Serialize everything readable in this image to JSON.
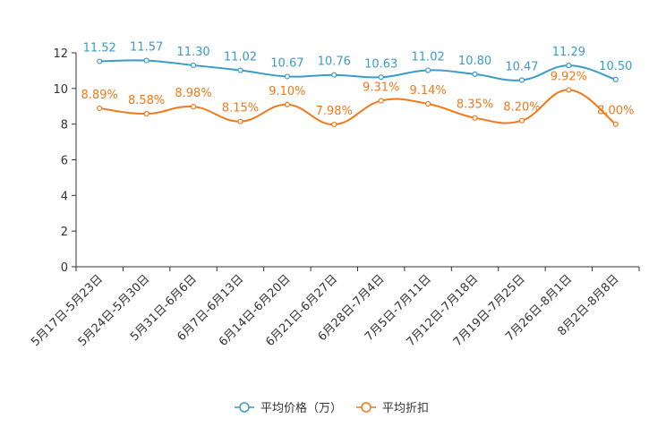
{
  "chart_data": {
    "type": "line",
    "categories": [
      "5月17日-5月23日",
      "5月24日-5月30日",
      "5月31日-6月6日",
      "6月7日-6月13日",
      "6月14日-6月20日",
      "6月21日-6月27日",
      "6月28日-7月4日",
      "7月5日-7月11日",
      "7月12日-7月18日",
      "7月19日-7月25日",
      "7月26日-8月1日",
      "8月2日-8月8日"
    ],
    "ylim": [
      0,
      12
    ],
    "yticks": [
      0,
      2,
      4,
      6,
      8,
      10,
      12
    ],
    "series": [
      {
        "name": "平均价格（万）",
        "color": "#3a9cc9",
        "values": [
          11.52,
          11.57,
          11.3,
          11.02,
          10.67,
          10.76,
          10.63,
          11.02,
          10.8,
          10.47,
          11.29,
          10.5
        ],
        "labels": [
          "11.52",
          "11.57",
          "11.30",
          "11.02",
          "10.67",
          "10.76",
          "10.63",
          "11.02",
          "10.80",
          "10.47",
          "11.29",
          "10.50"
        ]
      },
      {
        "name": "平均折扣",
        "color": "#f07a1a",
        "values": [
          8.89,
          8.58,
          8.98,
          8.15,
          9.1,
          7.98,
          9.31,
          9.14,
          8.35,
          8.2,
          9.92,
          8.0
        ],
        "labels": [
          "8.89%",
          "8.58%",
          "8.98%",
          "8.15%",
          "9.10%",
          "7.98%",
          "9.31%",
          "9.14%",
          "8.35%",
          "8.20%",
          "9.92%",
          "8.00%"
        ]
      }
    ],
    "legend_position": "bottom-center"
  }
}
